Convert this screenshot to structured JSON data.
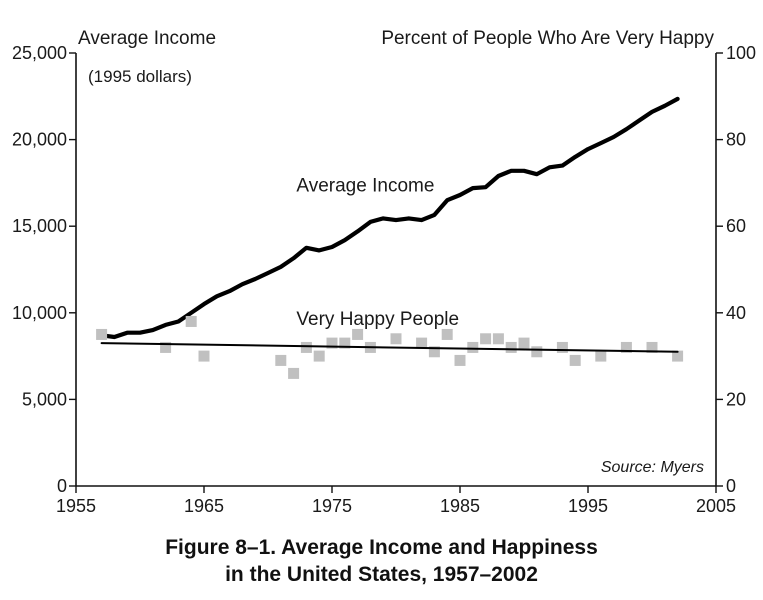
{
  "chart_data": {
    "type": "line",
    "title": "",
    "x_range": [
      1955,
      2005
    ],
    "x_ticks": [
      "1955",
      "1965",
      "1975",
      "1985",
      "1995",
      "2005"
    ],
    "y_left": {
      "label": "Average Income",
      "sublabel": "(1995 dollars)",
      "range": [
        0,
        25000
      ],
      "ticks": [
        "0",
        "5,000",
        "10,000",
        "15,000",
        "20,000",
        "25,000"
      ]
    },
    "y_right": {
      "label": "Percent of People Who Are Very Happy",
      "range": [
        0,
        100
      ],
      "ticks": [
        "0",
        "20",
        "40",
        "60",
        "80",
        "100"
      ]
    },
    "grid": false,
    "series": [
      {
        "name": "Average Income",
        "kind": "line",
        "axis": "left",
        "color": "#000000",
        "x": [
          1957,
          1958,
          1959,
          1960,
          1961,
          1962,
          1963,
          1964,
          1965,
          1966,
          1967,
          1968,
          1969,
          1970,
          1971,
          1972,
          1973,
          1974,
          1975,
          1976,
          1977,
          1978,
          1979,
          1980,
          1981,
          1982,
          1983,
          1984,
          1985,
          1986,
          1987,
          1988,
          1989,
          1990,
          1991,
          1992,
          1993,
          1994,
          1995,
          1996,
          1997,
          1998,
          1999,
          2000,
          2001,
          2002
        ],
        "y": [
          8700,
          8600,
          8850,
          8850,
          9000,
          9300,
          9500,
          10000,
          10500,
          10950,
          11250,
          11650,
          11950,
          12300,
          12650,
          13150,
          13750,
          13600,
          13800,
          14200,
          14700,
          15250,
          15450,
          15350,
          15450,
          15350,
          15650,
          16500,
          16800,
          17200,
          17250,
          17900,
          18200,
          18200,
          18000,
          18400,
          18500,
          19000,
          19450,
          19800,
          20150,
          20600,
          21100,
          21600,
          21950,
          22350
        ]
      },
      {
        "name": "Very Happy People",
        "kind": "scatter",
        "axis": "right",
        "color": "#c0c0c0",
        "x": [
          1957,
          1962,
          1964,
          1965,
          1971,
          1972,
          1973,
          1974,
          1975,
          1976,
          1977,
          1978,
          1980,
          1982,
          1983,
          1984,
          1985,
          1986,
          1987,
          1988,
          1989,
          1990,
          1991,
          1993,
          1994,
          1996,
          1998,
          2000,
          2002
        ],
        "y": [
          35,
          32,
          38,
          30,
          29,
          26,
          32,
          30,
          33,
          33,
          35,
          32,
          34,
          33,
          31,
          35,
          29,
          32,
          34,
          34,
          32,
          33,
          31,
          32,
          29,
          30,
          32,
          32,
          30
        ]
      },
      {
        "name": "Very Happy People trend",
        "kind": "trendline",
        "axis": "right",
        "color": "#000000",
        "x": [
          1957,
          2002
        ],
        "y": [
          33,
          31
        ]
      }
    ],
    "annotations": [
      {
        "text": "Average Income",
        "x": 1973,
        "y_left": 17000
      },
      {
        "text": "Very Happy People",
        "x": 1973,
        "y_left": 9300
      },
      {
        "text": "Source: Myers",
        "placement": "bottom-right"
      }
    ]
  },
  "caption": {
    "line1": "Figure 8–1.  Average Income and Happiness",
    "line2": "in the United States, 1957–2002"
  }
}
